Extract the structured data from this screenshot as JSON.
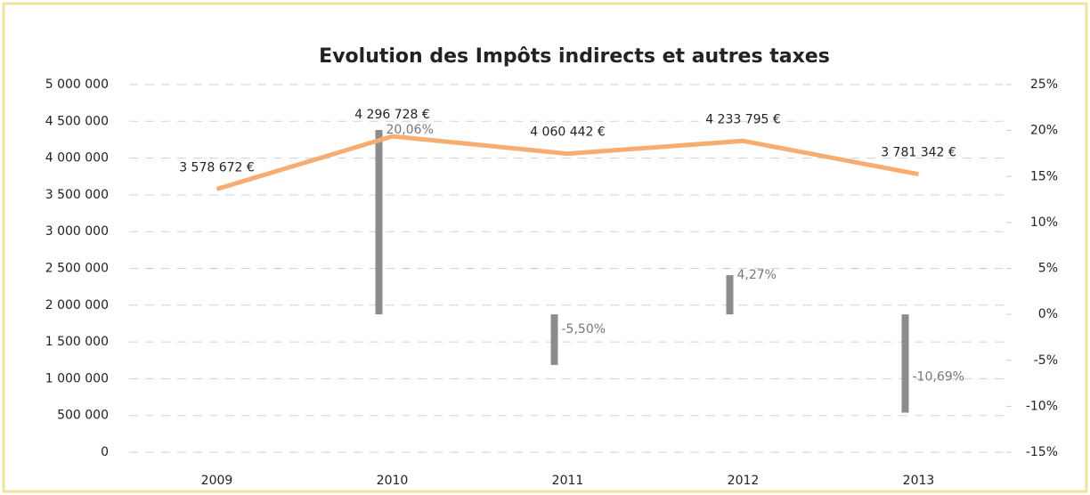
{
  "chart_data": {
    "type": "combo",
    "title": "Evolution des Impôts indirects et autres taxes",
    "categories": [
      "2009",
      "2010",
      "2011",
      "2012",
      "2013"
    ],
    "series": [
      {
        "name": "Impôts indirects et autres taxes",
        "type": "line",
        "color": "#f7ad72",
        "values": [
          3578672,
          4296728,
          4060442,
          4233795,
          3781342
        ],
        "value_labels": [
          "3 578 672 €",
          "4 296 728 €",
          "4 060 442 €",
          "4 233 795 €",
          "3 781 342 €"
        ]
      },
      {
        "name": "Evolution",
        "type": "bar",
        "axis": "y2",
        "color": "#8c8c8c",
        "values": [
          null,
          20.06,
          -5.5,
          4.27,
          -10.69
        ],
        "value_labels": [
          null,
          "20,06%",
          "-5,50%",
          "4,27%",
          "-10,69%"
        ]
      }
    ],
    "ylim": [
      0,
      5000000
    ],
    "yticks": [
      {
        "value": 0,
        "label": "0"
      },
      {
        "value": 500000,
        "label": "500 000"
      },
      {
        "value": 1000000,
        "label": "1 000 000"
      },
      {
        "value": 1500000,
        "label": "1 500 000"
      },
      {
        "value": 2000000,
        "label": "2 000 000"
      },
      {
        "value": 2500000,
        "label": "2 500 000"
      },
      {
        "value": 3000000,
        "label": "3 000 000"
      },
      {
        "value": 3500000,
        "label": "3 500 000"
      },
      {
        "value": 4000000,
        "label": "4 000 000"
      },
      {
        "value": 4500000,
        "label": "4 500 000"
      },
      {
        "value": 5000000,
        "label": "5 000 000"
      }
    ],
    "y2lim": [
      -15,
      25
    ],
    "y2ticks": [
      {
        "value": -15,
        "label": "-15%"
      },
      {
        "value": -10,
        "label": "-10%"
      },
      {
        "value": -5,
        "label": "-5%"
      },
      {
        "value": 0,
        "label": "0%"
      },
      {
        "value": 5,
        "label": "5%"
      },
      {
        "value": 10,
        "label": "10%"
      },
      {
        "value": 15,
        "label": "15%"
      },
      {
        "value": 20,
        "label": "20%"
      },
      {
        "value": 25,
        "label": "25%"
      }
    ],
    "grid": true
  }
}
